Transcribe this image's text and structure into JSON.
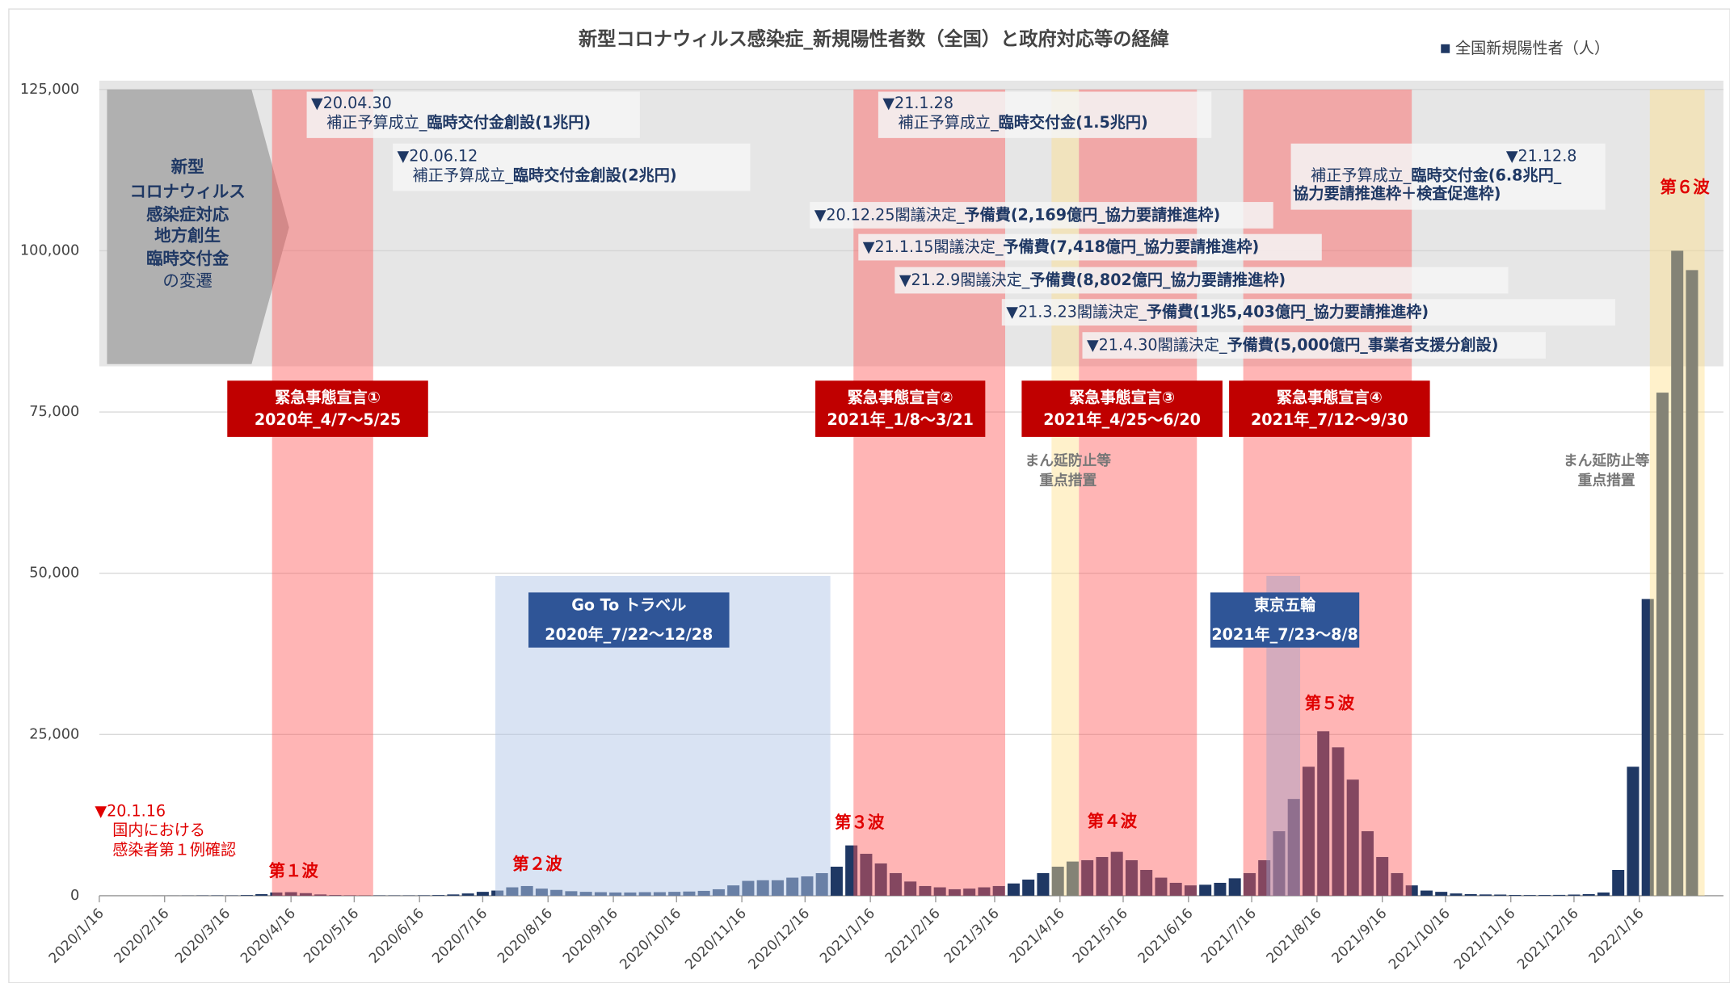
{
  "chart_data": {
    "type": "bar",
    "title": "新型コロナウィルス感染症_新規陽性者数（全国）と政府対応等の経緯",
    "series": [
      {
        "name": "全国新規陽性者（人）",
        "color": "#1f3864",
        "x": [
          "2020/1/16",
          "2020/1/23",
          "2020/1/30",
          "2020/2/6",
          "2020/2/13",
          "2020/2/20",
          "2020/2/27",
          "2020/3/5",
          "2020/3/12",
          "2020/3/19",
          "2020/3/26",
          "2020/4/2",
          "2020/4/9",
          "2020/4/16",
          "2020/4/23",
          "2020/4/30",
          "2020/5/7",
          "2020/5/14",
          "2020/5/21",
          "2020/5/28",
          "2020/6/4",
          "2020/6/11",
          "2020/6/18",
          "2020/6/25",
          "2020/7/2",
          "2020/7/9",
          "2020/7/16",
          "2020/7/23",
          "2020/7/30",
          "2020/8/6",
          "2020/8/13",
          "2020/8/20",
          "2020/8/27",
          "2020/9/3",
          "2020/9/10",
          "2020/9/17",
          "2020/9/24",
          "2020/10/1",
          "2020/10/8",
          "2020/10/15",
          "2020/10/22",
          "2020/10/29",
          "2020/11/5",
          "2020/11/12",
          "2020/11/19",
          "2020/11/26",
          "2020/12/3",
          "2020/12/10",
          "2020/12/17",
          "2020/12/24",
          "2020/12/31",
          "2021/1/7",
          "2021/1/14",
          "2021/1/21",
          "2021/1/28",
          "2021/2/4",
          "2021/2/11",
          "2021/2/18",
          "2021/2/25",
          "2021/3/4",
          "2021/3/11",
          "2021/3/18",
          "2021/3/25",
          "2021/4/1",
          "2021/4/8",
          "2021/4/15",
          "2021/4/22",
          "2021/4/29",
          "2021/5/6",
          "2021/5/13",
          "2021/5/20",
          "2021/5/27",
          "2021/6/3",
          "2021/6/10",
          "2021/6/17",
          "2021/6/24",
          "2021/7/1",
          "2021/7/8",
          "2021/7/15",
          "2021/7/22",
          "2021/7/29",
          "2021/8/5",
          "2021/8/12",
          "2021/8/19",
          "2021/8/26",
          "2021/9/2",
          "2021/9/9",
          "2021/9/16",
          "2021/9/23",
          "2021/9/30",
          "2021/10/7",
          "2021/10/14",
          "2021/10/21",
          "2021/10/28",
          "2021/11/4",
          "2021/11/11",
          "2021/11/18",
          "2021/11/25",
          "2021/12/2",
          "2021/12/9",
          "2021/12/16",
          "2021/12/23",
          "2021/12/30",
          "2022/1/6",
          "2022/1/13",
          "2022/1/20",
          "2022/1/27",
          "2022/2/3",
          "2022/2/10"
        ],
        "values": [
          0,
          0,
          0,
          0,
          5,
          10,
          20,
          40,
          50,
          40,
          100,
          250,
          500,
          550,
          400,
          200,
          100,
          50,
          30,
          40,
          40,
          40,
          60,
          100,
          200,
          350,
          600,
          800,
          1300,
          1500,
          1100,
          900,
          700,
          600,
          550,
          500,
          500,
          550,
          550,
          600,
          650,
          750,
          1000,
          1600,
          2300,
          2400,
          2400,
          2800,
          3000,
          3500,
          4500,
          7800,
          6500,
          5000,
          3500,
          2200,
          1500,
          1300,
          1000,
          1100,
          1300,
          1500,
          1900,
          2500,
          3500,
          4500,
          5300,
          5500,
          6000,
          6800,
          5500,
          4000,
          2800,
          2000,
          1600,
          1700,
          2000,
          2700,
          3500,
          5500,
          10000,
          15000,
          20000,
          25500,
          23000,
          18000,
          10000,
          6000,
          3500,
          1600,
          800,
          600,
          350,
          250,
          200,
          180,
          120,
          100,
          110,
          130,
          180,
          250,
          500,
          4000,
          20000,
          46000,
          78000,
          100000,
          97000
        ]
      }
    ],
    "xlim": [
      "2020/1/16",
      "2022/2/16"
    ],
    "xticks": [
      "2020/1/16",
      "2020/2/16",
      "2020/3/16",
      "2020/4/16",
      "2020/5/16",
      "2020/6/16",
      "2020/7/16",
      "2020/8/16",
      "2020/9/16",
      "2020/10/16",
      "2020/11/16",
      "2020/12/16",
      "2021/1/16",
      "2021/2/16",
      "2021/3/16",
      "2021/4/16",
      "2021/5/16",
      "2021/6/16",
      "2021/7/16",
      "2021/8/16",
      "2021/9/16",
      "2021/10/16",
      "2021/11/16",
      "2021/12/16",
      "2022/1/16"
    ],
    "ylim": [
      0,
      125000
    ],
    "yticks": [
      {
        "value": 0,
        "label": "0"
      },
      {
        "value": 25000,
        "label": "25,000"
      },
      {
        "value": 50000,
        "label": "50,000"
      },
      {
        "value": 75000,
        "label": "75,000"
      },
      {
        "value": 100000,
        "label": "100,000"
      },
      {
        "value": 125000,
        "label": "125,000"
      }
    ],
    "grid": true,
    "legend": "top-right",
    "emergency": [
      {
        "name": "緊急事態宣言①",
        "range": "2020年_4/7～5/25",
        "start": "2020/4/7",
        "end": "2020/5/25"
      },
      {
        "name": "緊急事態宣言②",
        "range": "2021年_1/8～3/21",
        "start": "2021/1/8",
        "end": "2021/3/21"
      },
      {
        "name": "緊急事態宣言③",
        "range": "2021年_4/25～6/20",
        "start": "2021/4/25",
        "end": "2021/6/20"
      },
      {
        "name": "緊急事態宣言④",
        "range": "2021年_7/12～9/30",
        "start": "2021/7/12",
        "end": "2021/9/30"
      }
    ],
    "semi_emergency": [
      {
        "lines": [
          "まん延防止等",
          "重点措置"
        ],
        "start": "2021/4/12",
        "end": "2021/4/25"
      },
      {
        "lines": [
          "まん延防止等",
          "重点措置"
        ],
        "start": "2022/1/21",
        "end": "2022/2/16"
      }
    ],
    "events": [
      {
        "name": "Go To トラベル",
        "range": "2020年_7/22～12/28",
        "start": "2020/7/22",
        "end": "2020/12/28"
      },
      {
        "name": "東京五輪",
        "range": "2021年_7/23～8/8",
        "start": "2021/7/23",
        "end": "2021/8/8"
      }
    ],
    "waves": [
      "第１波",
      "第２波",
      "第３波",
      "第４波",
      "第５波",
      "第６波"
    ],
    "first_case": [
      "▼20.1.16",
      "国内における",
      "感染者第１例確認"
    ],
    "panel": [
      "新型",
      "コロナウィルス",
      "感染症対応",
      "地方創生",
      "臨時交付金",
      "の変遷"
    ],
    "budget": [
      {
        "date": "▼20.04.30",
        "text": "補正予算成立_",
        "bold": "臨時交付金創設(1兆円)"
      },
      {
        "date": "▼20.06.12",
        "text": "補正予算成立_",
        "bold": "臨時交付金創設(2兆円)"
      },
      {
        "date": "▼21.1.28",
        "text": "補正予算成立_",
        "bold": "臨時交付金(1.5兆円)"
      },
      {
        "date": "▼21.12.8",
        "text": "補正予算成立_",
        "bold": "臨時交付金(6.8兆円_",
        "bold2": "協力要請推進枠＋検査促進枠)"
      },
      {
        "date": "▼20.12.25",
        "text": "閣議決定_",
        "bold": "予備費(2,169億円_協力要請推進枠)"
      },
      {
        "date": "▼21.1.15",
        "text": "閣議決定_",
        "bold": "予備費(7,418億円_協力要請推進枠)"
      },
      {
        "date": "▼21.2.9",
        "text": "閣議決定_",
        "bold": "予備費(8,802億円_協力要請推進枠)"
      },
      {
        "date": "▼21.3.23",
        "text": "閣議決定_",
        "bold": "予備費(1兆5,403億円_協力要請推進枠)"
      },
      {
        "date": "▼21.4.30",
        "text": "閣議決定_",
        "bold": "予備費(5,000億円_事業者支援分創設)"
      }
    ]
  }
}
